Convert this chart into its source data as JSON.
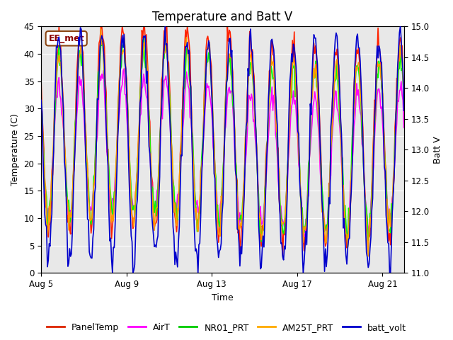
{
  "title": "Temperature and Batt V",
  "xlabel": "Time",
  "ylabel_left": "Temperature (C)",
  "ylabel_right": "Batt V",
  "station_label": "EE_met",
  "ylim_left": [
    0,
    45
  ],
  "ylim_right": [
    11.0,
    15.0
  ],
  "yticks_left": [
    0,
    5,
    10,
    15,
    20,
    25,
    30,
    35,
    40,
    45
  ],
  "yticks_right": [
    11.0,
    11.5,
    12.0,
    12.5,
    13.0,
    13.5,
    14.0,
    14.5,
    15.0
  ],
  "xtick_labels": [
    "Aug 5",
    "Aug 9",
    "Aug 13",
    "Aug 17",
    "Aug 21"
  ],
  "background_color": "#ffffff",
  "plot_bg_color": "#e8e8e8",
  "series": {
    "PanelTemp": {
      "color": "#ff2200",
      "lw": 1.2
    },
    "AirT": {
      "color": "#ff00ff",
      "lw": 1.2
    },
    "NR01_PRT": {
      "color": "#00ff00",
      "lw": 1.2
    },
    "AM25T_PRT": {
      "color": "#ff9900",
      "lw": 1.2
    },
    "batt_volt": {
      "color": "#0000cc",
      "lw": 1.2
    }
  },
  "legend_colors": {
    "PanelTemp": "#dd2200",
    "AirT": "#ff00ff",
    "NR01_PRT": "#00cc00",
    "AM25T_PRT": "#ffaa00",
    "batt_volt": "#0000cc"
  },
  "font": "DejaVu Sans",
  "title_fontsize": 12,
  "label_fontsize": 9,
  "tick_fontsize": 8.5,
  "legend_fontsize": 9
}
